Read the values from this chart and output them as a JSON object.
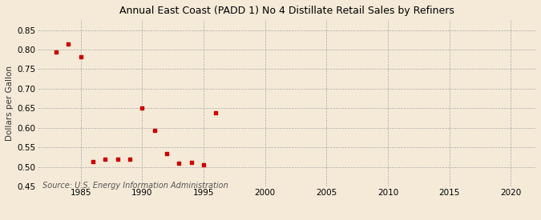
{
  "title": "Annual East Coast (PADD 1) No 4 Distillate Retail Sales by Refiners",
  "ylabel": "Dollars per Gallon",
  "source": "Source: U.S. Energy Information Administration",
  "background_color": "#f5ead8",
  "marker_color": "#cc0000",
  "xlim": [
    1981.5,
    2022
  ],
  "ylim": [
    0.45,
    0.875
  ],
  "xticks": [
    1985,
    1990,
    1995,
    2000,
    2005,
    2010,
    2015,
    2020
  ],
  "yticks": [
    0.45,
    0.5,
    0.55,
    0.6,
    0.65,
    0.7,
    0.75,
    0.8,
    0.85
  ],
  "x": [
    1983,
    1984,
    1985,
    1986,
    1987,
    1988,
    1989,
    1990,
    1991,
    1992,
    1993,
    1994,
    1995,
    1996
  ],
  "y": [
    0.794,
    0.815,
    0.782,
    0.514,
    0.521,
    0.521,
    0.521,
    0.651,
    0.594,
    0.534,
    0.51,
    0.512,
    0.505,
    0.638
  ]
}
